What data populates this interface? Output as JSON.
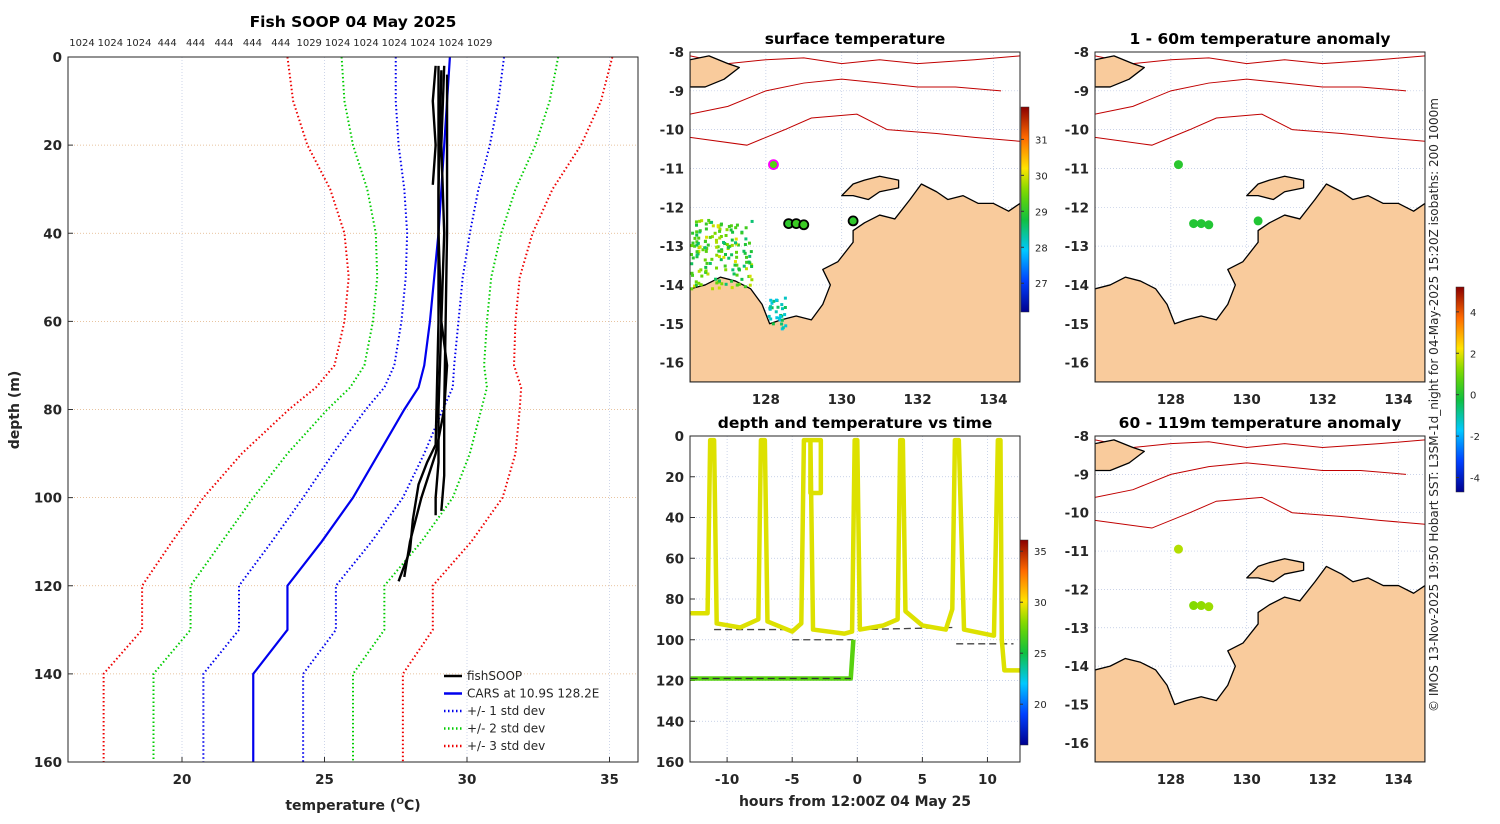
{
  "footer_note": "© IMOS 13-Nov-2025 19:50 Hobart SST: L3SM-1d_night for 04-May-2025 15:20Z isobaths: 200  1000m",
  "colors": {
    "land": "#f9cb9c",
    "isobath": "#c00000",
    "cars": "#0000ee",
    "sd1": "#0000ee",
    "sd2": "#00cc00",
    "sd3": "#ee0000",
    "fishsoop": "#000000"
  },
  "chart_data": [
    {
      "type": "line",
      "title": "Fish SOOP 04 May 2025",
      "top_labels": [
        "1024",
        "1024",
        "1024",
        "444",
        "444",
        "444",
        "444",
        "444",
        "1029",
        "1024",
        "1024",
        "1024",
        "1024",
        "1024",
        "1029"
      ],
      "xlabel": "temperature (",
      "xlabel_sup": "O",
      "xlabel_end": "C)",
      "ylabel": "depth (m)",
      "xlim": [
        16,
        36
      ],
      "ylim": [
        0,
        160
      ],
      "xticks": [
        20,
        25,
        30,
        35
      ],
      "yticks": [
        0,
        20,
        40,
        60,
        80,
        100,
        120,
        140,
        160
      ],
      "grid": true,
      "legend_position": "bottom-right",
      "legend": [
        "fishSOOP",
        "CARS at 10.9S 128.2E",
        "+/- 1 std dev",
        "+/- 2 std dev",
        "+/- 3 std dev"
      ],
      "cars": {
        "depth": [
          0,
          10,
          20,
          30,
          40,
          50,
          60,
          70,
          75,
          80,
          90,
          100,
          110,
          120,
          130,
          140,
          160
        ],
        "mean": [
          29.4,
          29.3,
          29.2,
          29.1,
          29.0,
          28.85,
          28.7,
          28.5,
          28.3,
          27.8,
          26.9,
          26.0,
          24.9,
          23.7,
          23.7,
          22.5,
          22.5
        ],
        "sd": [
          1.9,
          1.8,
          1.6,
          1.3,
          1.1,
          1.0,
          1.0,
          1.05,
          1.2,
          1.35,
          1.6,
          1.75,
          1.75,
          1.7,
          1.7,
          1.75,
          1.75
        ]
      },
      "fishsoop": [
        {
          "depth": [
            2,
            10,
            20,
            29
          ],
          "temp": [
            28.9,
            28.8,
            28.9,
            28.8
          ]
        },
        {
          "depth": [
            2,
            20,
            40,
            60,
            80,
            92,
            100,
            104
          ],
          "temp": [
            29.0,
            29.0,
            29.0,
            29.1,
            29.0,
            29.0,
            28.9,
            28.9
          ]
        },
        {
          "depth": [
            2,
            20,
            40,
            60,
            70,
            80,
            95,
            103
          ],
          "temp": [
            29.2,
            29.1,
            29.2,
            29.1,
            29.3,
            29.2,
            29.2,
            29.1
          ]
        },
        {
          "depth": [
            3,
            30,
            60,
            88,
            92,
            97,
            105,
            112,
            119
          ],
          "temp": [
            29.1,
            29.0,
            29.0,
            28.9,
            28.6,
            28.3,
            28.1,
            28.0,
            27.6
          ]
        },
        {
          "depth": [
            4,
            40,
            80,
            90,
            100,
            110,
            118
          ],
          "temp": [
            29.3,
            29.3,
            29.2,
            28.9,
            28.4,
            28.0,
            27.8
          ]
        }
      ]
    },
    {
      "type": "scatter",
      "title": "surface temperature",
      "lonlim": [
        126.0,
        134.7
      ],
      "latlim": [
        -16.5,
        -8
      ],
      "xticks": [
        128,
        130,
        132,
        134
      ],
      "yticks": [
        -8,
        -9,
        -10,
        -11,
        -12,
        -13,
        -14,
        -15,
        -16
      ],
      "colorbar": {
        "clim": [
          26.2,
          31.9
        ],
        "ticks": [
          27,
          28,
          29,
          30,
          31
        ]
      },
      "points": [
        {
          "lon": 128.2,
          "lat": -10.9,
          "value": 29.3,
          "edge": "#ff00ff"
        },
        {
          "lon": 128.6,
          "lat": -12.42,
          "value": 29.0,
          "edge": "#000000"
        },
        {
          "lon": 128.8,
          "lat": -12.42,
          "value": 29.1,
          "edge": "#000000"
        },
        {
          "lon": 129.0,
          "lat": -12.45,
          "value": 29.1,
          "edge": "#000000"
        },
        {
          "lon": 130.3,
          "lat": -12.35,
          "value": 29.0,
          "edge": "#000000"
        }
      ]
    },
    {
      "type": "line",
      "title": "depth and temperature vs time",
      "xlabel": "hours from 12:00Z 04 May 25",
      "xlim": [
        -12.85,
        12.5
      ],
      "ylim": [
        0,
        160
      ],
      "xticks": [
        -10,
        -5,
        0,
        5,
        10
      ],
      "yticks": [
        0,
        20,
        40,
        60,
        80,
        100,
        120,
        140,
        160
      ],
      "colorbar": {
        "clim": [
          16,
          36.1
        ],
        "ticks": [
          20,
          25,
          30,
          35
        ]
      },
      "trace": {
        "hours": [
          -12.8,
          -11.5,
          -11.3,
          -11.0,
          -10.8,
          -9,
          -7.6,
          -7.4,
          -7.1,
          -6.9,
          -5,
          -4.3,
          -4.1,
          -3.6,
          -3.6,
          -2.8,
          -2.8,
          -3.6,
          -3.4,
          -1,
          -0.4,
          -0.2,
          0,
          0.2,
          2,
          3.1,
          3.3,
          3.5,
          3.7,
          5,
          6.8,
          7.3,
          7.5,
          7.8,
          8.2,
          10.5,
          10.8,
          11.0,
          11.1,
          11.3,
          12.5
        ],
        "depth": [
          87,
          87,
          2,
          2,
          92,
          94,
          90,
          2,
          2,
          91,
          96,
          92,
          2,
          2,
          28,
          28,
          2,
          2,
          95,
          97,
          96,
          2,
          2,
          95,
          93,
          90,
          2,
          2,
          86,
          93,
          95,
          85,
          2,
          2,
          95,
          98,
          2,
          2,
          100,
          115,
          115
        ],
        "temp": 29.5
      },
      "bottom_trace": {
        "hours": [
          -12.8,
          -0.5,
          -0.3
        ],
        "depth": [
          119,
          119,
          100
        ],
        "temp": 27.0
      },
      "bottom_dashed": [
        {
          "hours": [
            -12.8,
            -11.3
          ],
          "depth": [
            87,
            87
          ]
        },
        {
          "hours": [
            -11.0,
            -5.0
          ],
          "depth": [
            95,
            95
          ]
        },
        {
          "hours": [
            -5.0,
            -0.3
          ],
          "depth": [
            100,
            100
          ]
        },
        {
          "hours": [
            -12.8,
            -0.5
          ],
          "depth": [
            119,
            119
          ]
        },
        {
          "hours": [
            0.2,
            7.3
          ],
          "depth": [
            95,
            94
          ]
        },
        {
          "hours": [
            7.6,
            12.0
          ],
          "depth": [
            102,
            102
          ]
        }
      ]
    },
    {
      "type": "scatter",
      "title": "1 - 60m temperature anomaly",
      "lonlim": [
        126.0,
        134.7
      ],
      "latlim": [
        -16.5,
        -8
      ],
      "xticks": [
        128,
        130,
        132,
        134
      ],
      "yticks": [
        -8,
        -9,
        -10,
        -11,
        -12,
        -13,
        -14,
        -15,
        -16
      ],
      "points": [
        {
          "lon": 128.2,
          "lat": -10.9,
          "value": 0.1
        },
        {
          "lon": 128.6,
          "lat": -12.42,
          "value": 0.0
        },
        {
          "lon": 128.8,
          "lat": -12.42,
          "value": 0.0
        },
        {
          "lon": 129.0,
          "lat": -12.45,
          "value": 0.0
        },
        {
          "lon": 130.3,
          "lat": -12.35,
          "value": 0.0
        }
      ]
    },
    {
      "type": "scatter",
      "title": "60 - 119m temperature anomaly",
      "lonlim": [
        126.0,
        134.7
      ],
      "latlim": [
        -16.5,
        -8
      ],
      "xticks": [
        128,
        130,
        132,
        134
      ],
      "yticks": [
        -8,
        -9,
        -10,
        -11,
        -12,
        -13,
        -14,
        -15,
        -16
      ],
      "colorbar": {
        "clim": [
          -4.7,
          5.2
        ],
        "ticks": [
          4,
          2,
          0,
          -2,
          -4
        ]
      },
      "points": [
        {
          "lon": 128.2,
          "lat": -10.95,
          "value": 1.6
        },
        {
          "lon": 128.6,
          "lat": -12.42,
          "value": 1.2
        },
        {
          "lon": 128.8,
          "lat": -12.42,
          "value": 1.3
        },
        {
          "lon": 129.0,
          "lat": -12.45,
          "value": 1.4
        }
      ]
    }
  ]
}
